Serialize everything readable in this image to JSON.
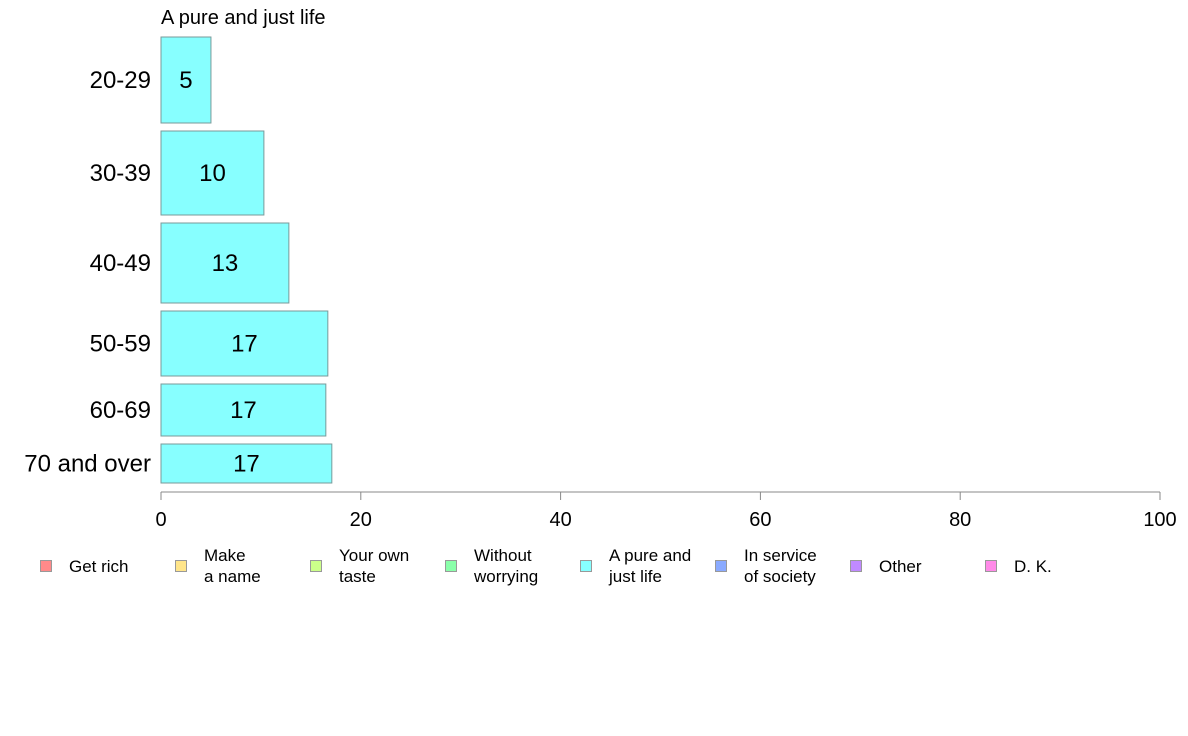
{
  "chart_data": {
    "type": "bar",
    "orientation": "horizontal",
    "title": "A pure and just life",
    "categories": [
      "20-29",
      "30-39",
      "40-49",
      "50-59",
      "60-69",
      "70 and over"
    ],
    "values": [
      5,
      10.3,
      12.8,
      16.7,
      16.5,
      17.1
    ],
    "value_labels": [
      "5",
      "10",
      "13",
      "17",
      "17",
      "17"
    ],
    "xlim": [
      0,
      100
    ],
    "x_ticks": [
      "0",
      "20",
      "40",
      "60",
      "80",
      "100"
    ],
    "bar_color": "#87ffff",
    "bar_edge_color": "#7a9a9a",
    "grid": false,
    "legend_position": "bottom",
    "legend": [
      {
        "label": "Get rich",
        "color": "#ff8a8a"
      },
      {
        "label": "Make\na name",
        "color": "#ffe58a"
      },
      {
        "label": "Your own\ntaste",
        "color": "#ccff8a"
      },
      {
        "label": "Without\nworrying",
        "color": "#8affaa"
      },
      {
        "label": "A pure and\njust life",
        "color": "#87ffff"
      },
      {
        "label": "In service\nof society",
        "color": "#8aaaff"
      },
      {
        "label": "Other",
        "color": "#c08aff"
      },
      {
        "label": "D. K.",
        "color": "#ff8ae8"
      }
    ]
  }
}
